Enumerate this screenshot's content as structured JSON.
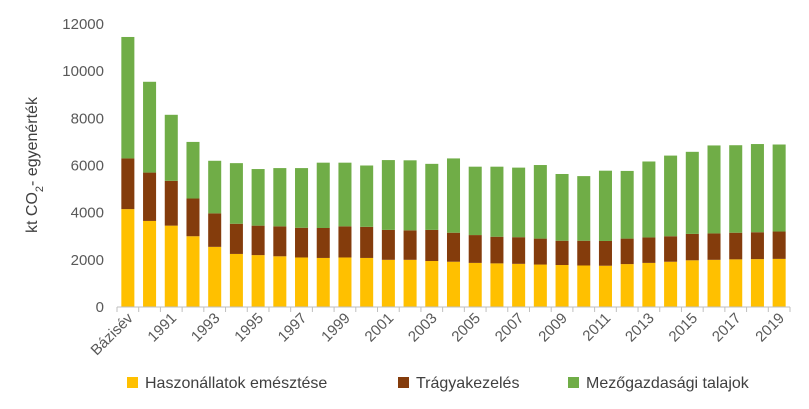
{
  "chart_data": {
    "type": "bar",
    "stacked": true,
    "categories": [
      "Bázisév",
      "1990",
      "1991",
      "1992",
      "1993",
      "1994",
      "1995",
      "1996",
      "1997",
      "1998",
      "1999",
      "2000",
      "2001",
      "2002",
      "2003",
      "2004",
      "2005",
      "2006",
      "2007",
      "2008",
      "2009",
      "2010",
      "2011",
      "2012",
      "2013",
      "2014",
      "2015",
      "2016",
      "2017",
      "2018",
      "2019"
    ],
    "x_tick_labels": [
      "Bázisév",
      "1991",
      "1993",
      "1995",
      "1997",
      "1999",
      "2001",
      "2003",
      "2005",
      "2007",
      "2009",
      "2011",
      "2013",
      "2015",
      "2017",
      "2019"
    ],
    "series": [
      {
        "name": "Haszonállatok emésztése",
        "color": "#FFC000",
        "values": [
          4150,
          3650,
          3450,
          3000,
          2550,
          2250,
          2200,
          2150,
          2100,
          2080,
          2100,
          2080,
          2000,
          2000,
          1950,
          1920,
          1870,
          1850,
          1830,
          1800,
          1780,
          1760,
          1750,
          1820,
          1870,
          1920,
          1980,
          2000,
          2020,
          2030,
          2040
        ]
      },
      {
        "name": "Trágyakezelés",
        "color": "#843C0C",
        "values": [
          2150,
          2050,
          1900,
          1600,
          1420,
          1280,
          1250,
          1270,
          1260,
          1270,
          1320,
          1320,
          1270,
          1250,
          1320,
          1230,
          1180,
          1130,
          1130,
          1100,
          1030,
          1050,
          1050,
          1080,
          1080,
          1080,
          1120,
          1120,
          1130,
          1140,
          1160
        ]
      },
      {
        "name": "Mezőgazdasági talajok",
        "color": "#70AD47",
        "values": [
          5150,
          3850,
          2800,
          2400,
          2230,
          2570,
          2400,
          2470,
          2530,
          2770,
          2700,
          2600,
          2960,
          2970,
          2800,
          3150,
          2900,
          2970,
          2950,
          3120,
          2830,
          2740,
          2980,
          2870,
          3220,
          3420,
          3480,
          3730,
          3710,
          3740,
          3690
        ]
      }
    ],
    "ylabel": "kt CO₂- egyenérték",
    "ylim": [
      0,
      12000
    ],
    "yticks": [
      0,
      2000,
      4000,
      6000,
      8000,
      10000,
      12000
    ],
    "grid": false,
    "legend": "bottom"
  },
  "colors": {
    "axis": "#BFBFBF",
    "text": "#595959"
  }
}
